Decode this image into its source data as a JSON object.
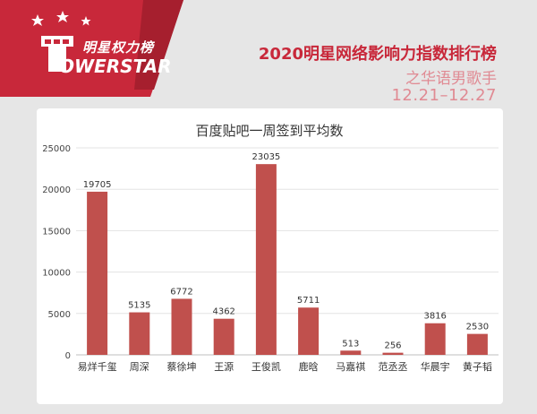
{
  "brand": {
    "logo_cn": "明星权力榜",
    "logo_en": "OWERSTAR",
    "logo_glyph": "P"
  },
  "header": {
    "headline": "2020明星网络影响力指数排行榜",
    "subline": "之华语男歌手",
    "date_range": "12.21–12.27"
  },
  "colors": {
    "brand_red": "#c8283a",
    "bar": "#c0504d",
    "background": "#e6e6e6"
  },
  "chart_data": {
    "type": "bar",
    "title": "百度贴吧一周签到平均数",
    "categories": [
      "易烊千玺",
      "周深",
      "蔡徐坤",
      "王源",
      "王俊凯",
      "鹿晗",
      "马嘉祺",
      "范丞丞",
      "华晨宇",
      "黄子韬"
    ],
    "values": [
      19705,
      5135,
      6772,
      4362,
      23035,
      5711,
      513,
      256,
      3816,
      2530
    ],
    "xlabel": "",
    "ylabel": "",
    "ylim": [
      0,
      25000
    ],
    "yticks": [
      0,
      5000,
      10000,
      15000,
      20000,
      25000
    ],
    "grid": true,
    "legend": "none",
    "data_labels": true
  }
}
